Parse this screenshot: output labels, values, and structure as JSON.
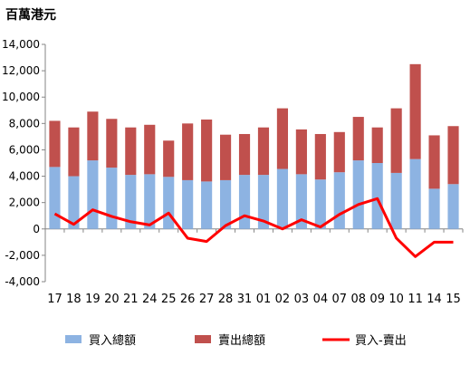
{
  "unit_label": "百萬港元",
  "chart_data": {
    "type": "bar",
    "stacked": true,
    "categories": [
      "17",
      "18",
      "19",
      "20",
      "21",
      "24",
      "25",
      "26",
      "27",
      "28",
      "31",
      "01",
      "02",
      "03",
      "04",
      "07",
      "08",
      "09",
      "10",
      "11",
      "14",
      "15"
    ],
    "series": [
      {
        "name": "買入總額",
        "kind": "bar",
        "color": "#8db3e2",
        "values": [
          4700,
          4000,
          5200,
          4650,
          4100,
          4150,
          3950,
          3700,
          3600,
          3700,
          4100,
          4100,
          4550,
          4150,
          3750,
          4300,
          5200,
          5000,
          4250,
          5300,
          3050,
          3400
        ]
      },
      {
        "name": "賣出總額",
        "kind": "bar",
        "color": "#c0504d",
        "values": [
          3500,
          3700,
          3700,
          3700,
          3600,
          3750,
          2750,
          4300,
          4700,
          3450,
          3100,
          3600,
          4600,
          3400,
          3450,
          3050,
          3300,
          2700,
          4900,
          7200,
          4050,
          4400
        ]
      },
      {
        "name": "買入-賣出",
        "kind": "line",
        "color": "#ff0000",
        "values": [
          1150,
          350,
          1450,
          950,
          550,
          300,
          1200,
          -700,
          -950,
          250,
          1000,
          600,
          0,
          700,
          150,
          1100,
          1850,
          2300,
          -700,
          -2100,
          -1000,
          -1000
        ]
      }
    ],
    "ylim": [
      -4000,
      14000
    ],
    "yticks": [
      "-4,000",
      "-2,000",
      "0",
      "2,000",
      "4,000",
      "6,000",
      "8,000",
      "10,000",
      "12,000",
      "14,000"
    ],
    "ytick_values": [
      -4000,
      -2000,
      0,
      2000,
      4000,
      6000,
      8000,
      10000,
      12000,
      14000
    ],
    "grid": false,
    "legend_position": "bottom"
  }
}
